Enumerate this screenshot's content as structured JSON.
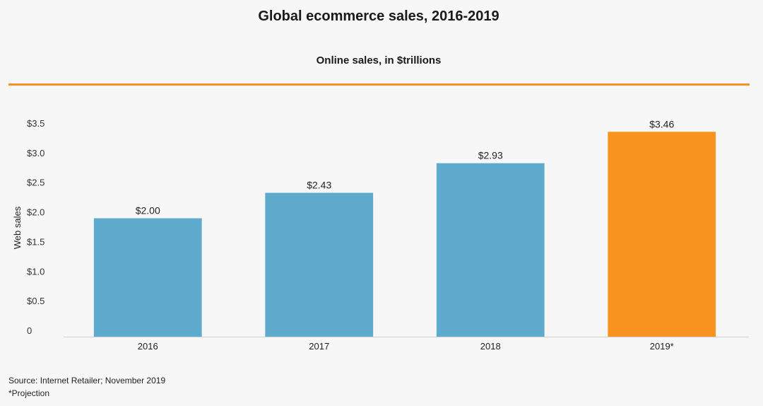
{
  "chart_data": {
    "type": "bar",
    "title": "Global ecommerce sales, 2016-2019",
    "subtitle": "Online sales, in $trillions",
    "ylabel": "Web sales",
    "xlabel": "",
    "categories": [
      "2016",
      "2017",
      "2018",
      "2019*"
    ],
    "values": [
      2.0,
      2.43,
      2.93,
      3.46
    ],
    "value_labels": [
      "$2.00",
      "$2.43",
      "$2.93",
      "$3.46"
    ],
    "bar_colors": [
      "#5fabce",
      "#5fabce",
      "#5fabce",
      "#f7931e"
    ],
    "ylim": [
      0,
      3.5
    ],
    "yticks": [
      0,
      0.5,
      1.0,
      1.5,
      2.0,
      2.5,
      3.0,
      3.5
    ],
    "ytick_labels": [
      "0",
      "$0.5",
      "$1.0",
      "$1.5",
      "$2.0",
      "$2.5",
      "$3.0",
      "$3.5"
    ],
    "grid": false,
    "legend": "none"
  },
  "colors": {
    "accent_rule": "#f7931e",
    "background": "#f7f7f7"
  },
  "footer": {
    "source": "Source: Internet Retailer; November 2019",
    "note": "*Projection"
  }
}
